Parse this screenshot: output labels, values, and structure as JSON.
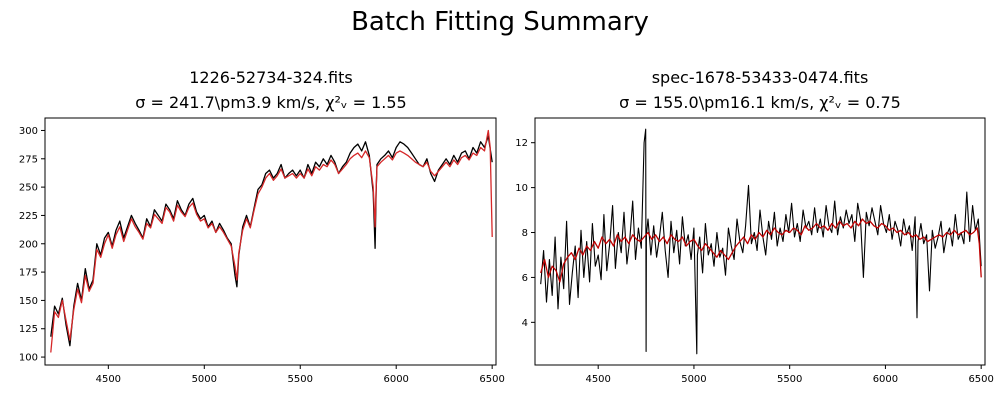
{
  "figure": {
    "suptitle": "Batch Fitting Summary"
  },
  "chart_data": [
    {
      "type": "line",
      "title_line1": "1226-52734-324.fits",
      "title_line2": "σ = 241.7\\pm3.9 km/s, χ²ᵥ = 1.55",
      "xlim": [
        4170,
        6520
      ],
      "ylim": [
        93,
        311
      ],
      "xticks": [
        4500,
        5000,
        5500,
        6000,
        6500
      ],
      "yticks": [
        100,
        125,
        150,
        175,
        200,
        225,
        250,
        275,
        300
      ],
      "series": [
        {
          "role": "data",
          "color": "#000000",
          "x": [
            4200,
            4220,
            4240,
            4260,
            4280,
            4300,
            4320,
            4340,
            4360,
            4380,
            4400,
            4420,
            4440,
            4460,
            4480,
            4500,
            4520,
            4540,
            4560,
            4580,
            4600,
            4620,
            4640,
            4660,
            4680,
            4700,
            4720,
            4740,
            4760,
            4780,
            4800,
            4820,
            4840,
            4860,
            4880,
            4900,
            4920,
            4940,
            4960,
            4980,
            5000,
            5020,
            5040,
            5060,
            5080,
            5100,
            5120,
            5140,
            5160,
            5170,
            5180,
            5200,
            5220,
            5240,
            5260,
            5280,
            5300,
            5320,
            5340,
            5360,
            5380,
            5400,
            5420,
            5440,
            5460,
            5480,
            5500,
            5520,
            5540,
            5560,
            5580,
            5600,
            5620,
            5640,
            5660,
            5680,
            5700,
            5720,
            5740,
            5760,
            5780,
            5800,
            5820,
            5840,
            5860,
            5880,
            5890,
            5895,
            5900,
            5920,
            5940,
            5960,
            5980,
            6000,
            6020,
            6040,
            6060,
            6080,
            6100,
            6120,
            6140,
            6160,
            6180,
            6200,
            6220,
            6240,
            6260,
            6280,
            6300,
            6320,
            6340,
            6360,
            6380,
            6400,
            6420,
            6440,
            6460,
            6480,
            6500
          ],
          "y": [
            118,
            145,
            138,
            152,
            128,
            110,
            145,
            165,
            150,
            178,
            160,
            168,
            200,
            190,
            205,
            210,
            198,
            212,
            220,
            205,
            215,
            225,
            218,
            212,
            205,
            222,
            215,
            230,
            225,
            220,
            235,
            230,
            222,
            238,
            230,
            225,
            235,
            240,
            228,
            222,
            225,
            215,
            220,
            210,
            218,
            212,
            205,
            200,
            172,
            162,
            190,
            215,
            225,
            215,
            232,
            248,
            252,
            262,
            265,
            258,
            262,
            270,
            258,
            262,
            265,
            260,
            265,
            258,
            270,
            262,
            272,
            268,
            275,
            270,
            278,
            272,
            262,
            268,
            272,
            280,
            285,
            288,
            282,
            290,
            278,
            245,
            196,
            245,
            270,
            275,
            278,
            282,
            276,
            285,
            290,
            288,
            285,
            280,
            275,
            270,
            268,
            275,
            262,
            255,
            265,
            270,
            275,
            270,
            278,
            272,
            280,
            282,
            275,
            285,
            280,
            290,
            285,
            295,
            272
          ],
          "width": 1.3
        },
        {
          "role": "model",
          "color": "#d62728",
          "x": [
            4200,
            4220,
            4240,
            4260,
            4280,
            4300,
            4320,
            4340,
            4360,
            4380,
            4400,
            4420,
            4440,
            4460,
            4480,
            4500,
            4520,
            4540,
            4560,
            4580,
            4600,
            4620,
            4640,
            4660,
            4680,
            4700,
            4720,
            4740,
            4760,
            4780,
            4800,
            4820,
            4840,
            4860,
            4880,
            4900,
            4920,
            4940,
            4960,
            4980,
            5000,
            5020,
            5040,
            5060,
            5080,
            5100,
            5120,
            5140,
            5160,
            5170,
            5180,
            5200,
            5220,
            5240,
            5260,
            5280,
            5300,
            5320,
            5340,
            5360,
            5380,
            5400,
            5420,
            5440,
            5460,
            5480,
            5500,
            5520,
            5540,
            5560,
            5580,
            5600,
            5620,
            5640,
            5660,
            5680,
            5700,
            5720,
            5740,
            5760,
            5780,
            5800,
            5820,
            5840,
            5860,
            5880,
            5890,
            5895,
            5900,
            5920,
            5940,
            5960,
            5980,
            6000,
            6020,
            6040,
            6060,
            6080,
            6100,
            6120,
            6140,
            6160,
            6180,
            6200,
            6220,
            6240,
            6260,
            6280,
            6300,
            6320,
            6340,
            6360,
            6380,
            6400,
            6420,
            6440,
            6460,
            6480,
            6490,
            6500
          ],
          "y": [
            104,
            140,
            135,
            150,
            132,
            115,
            142,
            160,
            148,
            172,
            158,
            165,
            195,
            188,
            200,
            208,
            196,
            208,
            215,
            202,
            212,
            222,
            215,
            210,
            204,
            218,
            214,
            226,
            222,
            218,
            232,
            228,
            220,
            234,
            228,
            224,
            232,
            236,
            226,
            220,
            222,
            214,
            218,
            210,
            215,
            210,
            204,
            198,
            180,
            168,
            192,
            212,
            222,
            214,
            230,
            244,
            250,
            258,
            262,
            256,
            260,
            266,
            258,
            260,
            262,
            258,
            262,
            258,
            266,
            260,
            268,
            265,
            270,
            268,
            274,
            270,
            262,
            266,
            270,
            275,
            278,
            280,
            276,
            282,
            276,
            250,
            215,
            248,
            268,
            272,
            275,
            278,
            274,
            280,
            282,
            280,
            278,
            275,
            272,
            270,
            268,
            272,
            264,
            260,
            264,
            268,
            272,
            268,
            274,
            270,
            276,
            278,
            274,
            280,
            278,
            285,
            282,
            300,
            285,
            206
          ],
          "width": 1.3
        }
      ]
    },
    {
      "type": "line",
      "title_line1": "spec-1678-53433-0474.fits",
      "title_line2": "σ = 155.0\\pm16.1 km/s, χ²ᵥ = 0.75",
      "xlim": [
        4170,
        6520
      ],
      "ylim": [
        2.1,
        13.1
      ],
      "xticks": [
        4500,
        5000,
        5500,
        6000,
        6500
      ],
      "yticks": [
        4,
        6,
        8,
        10,
        12
      ],
      "series": [
        {
          "role": "data",
          "color": "#000000",
          "x": [
            4200,
            4215,
            4230,
            4245,
            4260,
            4275,
            4290,
            4305,
            4320,
            4335,
            4350,
            4365,
            4380,
            4395,
            4410,
            4425,
            4440,
            4455,
            4470,
            4485,
            4500,
            4515,
            4530,
            4545,
            4560,
            4575,
            4590,
            4605,
            4620,
            4635,
            4650,
            4665,
            4680,
            4695,
            4710,
            4725,
            4740,
            4748,
            4750,
            4752,
            4760,
            4775,
            4790,
            4805,
            4820,
            4835,
            4850,
            4865,
            4880,
            4895,
            4910,
            4925,
            4940,
            4955,
            4970,
            4985,
            5000,
            5012,
            5015,
            5018,
            5030,
            5045,
            5060,
            5075,
            5090,
            5105,
            5120,
            5135,
            5150,
            5165,
            5180,
            5195,
            5210,
            5225,
            5240,
            5255,
            5270,
            5285,
            5300,
            5315,
            5330,
            5345,
            5360,
            5375,
            5390,
            5405,
            5420,
            5435,
            5450,
            5465,
            5480,
            5495,
            5510,
            5525,
            5540,
            5555,
            5570,
            5585,
            5600,
            5615,
            5630,
            5645,
            5660,
            5675,
            5690,
            5705,
            5720,
            5735,
            5750,
            5765,
            5780,
            5795,
            5810,
            5825,
            5840,
            5855,
            5870,
            5885,
            5900,
            5915,
            5930,
            5945,
            5960,
            5975,
            5990,
            6005,
            6020,
            6035,
            6050,
            6065,
            6080,
            6095,
            6110,
            6125,
            6140,
            6155,
            6165,
            6170,
            6185,
            6200,
            6215,
            6230,
            6245,
            6260,
            6275,
            6290,
            6305,
            6320,
            6335,
            6350,
            6365,
            6380,
            6395,
            6410,
            6425,
            6440,
            6455,
            6470,
            6485,
            6500
          ],
          "y": [
            5.7,
            7.2,
            4.9,
            6.8,
            5.2,
            7.8,
            4.6,
            6.9,
            5.5,
            8.5,
            4.8,
            6.2,
            7.4,
            5.1,
            8.1,
            6.0,
            7.6,
            5.8,
            8.4,
            6.5,
            7.0,
            5.9,
            8.8,
            6.3,
            7.5,
            9.2,
            6.4,
            8.0,
            7.1,
            8.9,
            6.6,
            7.7,
            9.4,
            6.8,
            8.2,
            7.3,
            12.0,
            12.6,
            2.7,
            7.9,
            8.6,
            7.0,
            8.3,
            6.9,
            7.8,
            8.9,
            7.2,
            6.0,
            8.5,
            7.1,
            8.1,
            6.6,
            8.7,
            7.4,
            7.9,
            6.8,
            8.2,
            3.8,
            2.6,
            7.0,
            7.8,
            6.2,
            8.4,
            7.0,
            7.5,
            6.5,
            8.0,
            6.9,
            7.3,
            6.1,
            8.2,
            7.4,
            6.8,
            8.6,
            7.6,
            7.1,
            8.3,
            10.1,
            7.5,
            8.0,
            7.2,
            9.0,
            7.8,
            7.0,
            8.5,
            7.7,
            8.9,
            7.4,
            8.2,
            7.6,
            8.8,
            8.0,
            9.3,
            7.8,
            8.4,
            7.6,
            9.0,
            8.2,
            8.5,
            7.9,
            9.1,
            8.0,
            8.6,
            7.8,
            9.2,
            8.3,
            8.0,
            9.4,
            7.9,
            8.7,
            8.2,
            9.0,
            8.4,
            8.8,
            7.6,
            9.3,
            8.6,
            6.0,
            8.9,
            8.3,
            9.1,
            8.5,
            7.9,
            9.2,
            8.4,
            8.0,
            8.8,
            7.7,
            8.5,
            8.1,
            7.4,
            8.6,
            7.9,
            8.3,
            7.2,
            8.7,
            4.2,
            7.6,
            8.4,
            7.5,
            7.9,
            5.4,
            8.1,
            7.3,
            7.8,
            8.5,
            7.1,
            7.9,
            8.2,
            7.4,
            8.8,
            7.7,
            8.0,
            7.5,
            9.8,
            7.6,
            9.2,
            8.1,
            8.6,
            6.5
          ],
          "width": 1.1
        },
        {
          "role": "model",
          "color": "#c00000",
          "x": [
            4200,
            4220,
            4240,
            4260,
            4280,
            4300,
            4320,
            4340,
            4360,
            4380,
            4400,
            4420,
            4440,
            4460,
            4480,
            4500,
            4520,
            4540,
            4560,
            4580,
            4600,
            4620,
            4640,
            4660,
            4680,
            4700,
            4720,
            4740,
            4760,
            4780,
            4800,
            4820,
            4840,
            4860,
            4880,
            4900,
            4920,
            4940,
            4960,
            4980,
            5000,
            5020,
            5040,
            5060,
            5080,
            5100,
            5120,
            5140,
            5160,
            5180,
            5200,
            5220,
            5240,
            5260,
            5280,
            5300,
            5320,
            5340,
            5360,
            5380,
            5400,
            5420,
            5440,
            5460,
            5480,
            5500,
            5520,
            5540,
            5560,
            5580,
            5600,
            5620,
            5640,
            5660,
            5680,
            5700,
            5720,
            5740,
            5760,
            5780,
            5800,
            5820,
            5840,
            5860,
            5880,
            5900,
            5920,
            5940,
            5960,
            5980,
            6000,
            6020,
            6040,
            6060,
            6080,
            6100,
            6120,
            6140,
            6160,
            6180,
            6200,
            6220,
            6240,
            6260,
            6280,
            6300,
            6320,
            6340,
            6360,
            6380,
            6400,
            6420,
            6440,
            6460,
            6480,
            6490,
            6500
          ],
          "y": [
            6.2,
            6.8,
            6.0,
            6.5,
            6.3,
            5.8,
            6.6,
            6.9,
            7.1,
            6.8,
            7.3,
            7.0,
            7.4,
            7.2,
            7.6,
            7.3,
            7.8,
            7.5,
            7.7,
            7.4,
            7.9,
            7.6,
            7.8,
            7.5,
            7.9,
            7.7,
            7.6,
            7.8,
            8.0,
            7.7,
            7.9,
            7.6,
            7.8,
            7.5,
            7.9,
            7.7,
            7.6,
            7.8,
            7.4,
            7.6,
            7.7,
            7.4,
            7.2,
            7.5,
            7.3,
            7.1,
            6.9,
            7.2,
            7.0,
            6.8,
            7.1,
            7.4,
            7.6,
            7.8,
            7.5,
            7.9,
            7.7,
            8.0,
            7.8,
            8.1,
            7.9,
            8.2,
            8.0,
            7.9,
            8.1,
            8.0,
            8.2,
            8.1,
            7.9,
            8.3,
            8.1,
            8.2,
            8.4,
            8.2,
            8.3,
            8.1,
            8.4,
            8.2,
            8.5,
            8.3,
            8.4,
            8.2,
            8.5,
            8.3,
            8.6,
            8.4,
            8.5,
            8.3,
            8.2,
            8.4,
            8.3,
            8.1,
            8.2,
            8.0,
            8.1,
            7.9,
            8.0,
            7.8,
            7.9,
            7.7,
            7.8,
            7.6,
            7.7,
            7.8,
            7.9,
            7.8,
            8.0,
            7.9,
            8.1,
            7.9,
            8.0,
            8.1,
            7.9,
            8.0,
            8.2,
            7.5,
            6.0
          ],
          "width": 1.3
        }
      ]
    }
  ]
}
